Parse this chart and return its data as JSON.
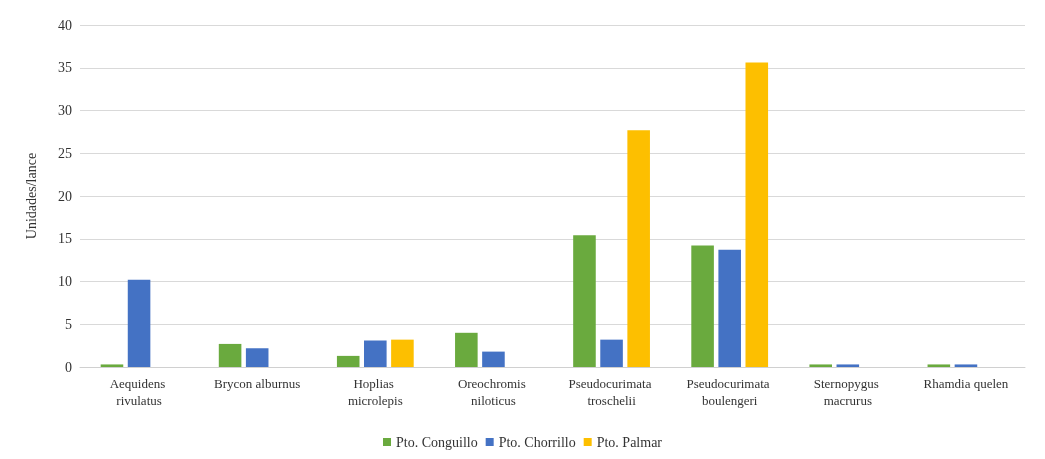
{
  "chart_data": {
    "type": "bar",
    "ylabel": "Unidades/lance",
    "categories": [
      "Aequidens rivulatus",
      "Brycon alburnus",
      "Hoplias microlepis",
      "Oreochromis niloticus",
      "Pseudocurimata troschelii",
      "Pseudocurimata boulengeri",
      "Sternopygus macrurus",
      "Rhamdia quelen"
    ],
    "series": [
      {
        "name": "Pto. Conguillo",
        "color": "#6aaa3e",
        "values": [
          0.3,
          2.7,
          1.3,
          4.0,
          15.4,
          14.2,
          0.3,
          0.3
        ]
      },
      {
        "name": "Pto. Chorrillo",
        "color": "#4472c4",
        "values": [
          10.2,
          2.2,
          3.1,
          1.8,
          3.2,
          13.7,
          0.3,
          0.3
        ]
      },
      {
        "name": "Pto. Palmar",
        "color": "#fdbf00",
        "values": [
          null,
          null,
          3.2,
          null,
          27.7,
          35.6,
          null,
          null
        ]
      }
    ],
    "ylim": [
      0,
      40
    ],
    "yticks": [
      0,
      5,
      10,
      15,
      20,
      25,
      30,
      35,
      40
    ],
    "grid": "y",
    "legend": "bottom"
  }
}
